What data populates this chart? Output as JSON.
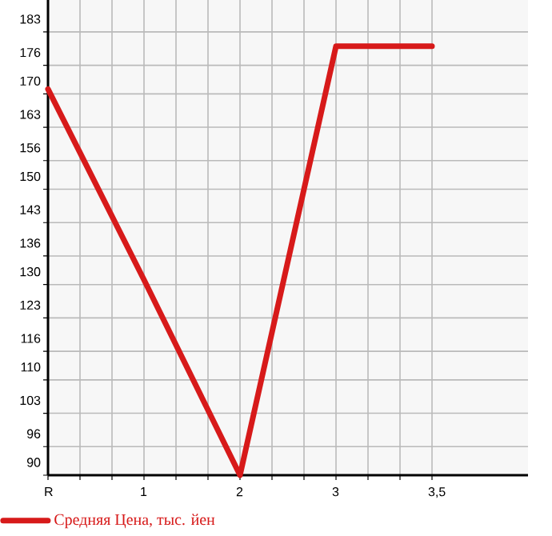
{
  "chart_data": {
    "type": "line",
    "categories": [
      "R",
      "1",
      "2",
      "3",
      "3,5"
    ],
    "series": [
      {
        "name": "Средняя Цена, тыс. йен",
        "color": "#d71a1a",
        "values": [
          171,
          131,
          90,
          180,
          180
        ]
      }
    ],
    "ylim": [
      90,
      189.7
    ],
    "yticks": [
      90,
      96,
      103,
      110,
      116,
      123,
      130,
      136,
      143,
      150,
      156,
      163,
      170,
      176,
      183
    ],
    "grid": true,
    "legend": "bottom",
    "marker": "none",
    "line_style": "solid"
  }
}
